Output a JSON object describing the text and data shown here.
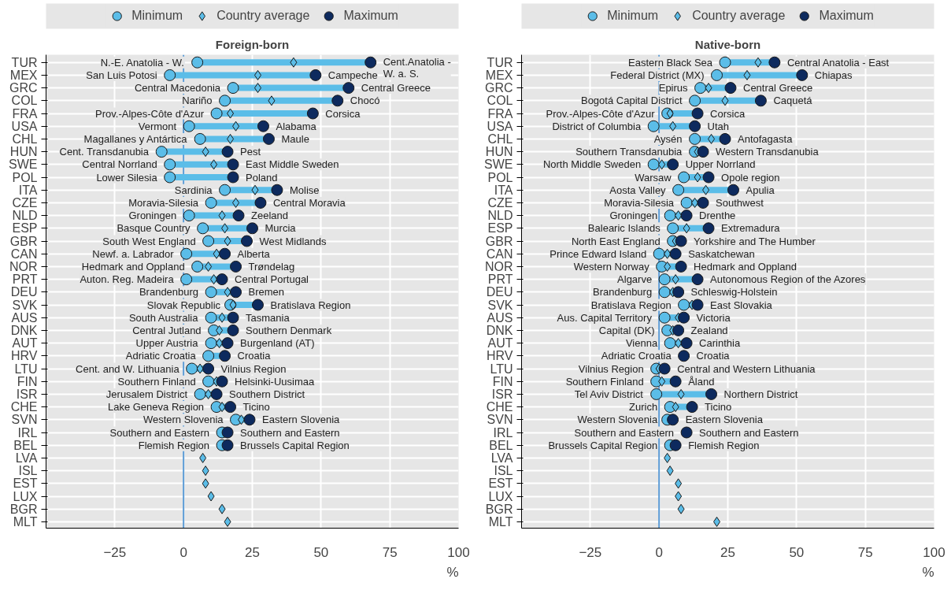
{
  "chart_data": [
    {
      "type": "scatter",
      "orientation": "horizontal",
      "title": "Foreign-born",
      "xlabel": "%",
      "legend": "top",
      "grid": true,
      "categories": [
        "TUR",
        "MEX",
        "GRC",
        "COL",
        "FRA",
        "USA",
        "CHL",
        "HUN",
        "SWE",
        "POL",
        "ITA",
        "CZE",
        "NLD",
        "ESP",
        "GBR",
        "CAN",
        "NOR",
        "PRT",
        "DEU",
        "SVK",
        "AUS",
        "DNK",
        "AUT",
        "HRV",
        "LTU",
        "FIN",
        "ISR",
        "CHE",
        "SVN",
        "IRL",
        "BEL",
        "LVA",
        "ISL",
        "EST",
        "LUX",
        "BGR",
        "MLT"
      ],
      "xlim": [
        -50,
        100
      ],
      "xticks": [
        -25,
        0,
        25,
        50,
        75,
        100
      ],
      "ref_lines": [
        {
          "axis": "x",
          "value": 0,
          "color": "#5b9bd5"
        }
      ],
      "series": [
        {
          "name": "Minimum",
          "color": "#5bbde8",
          "marker": "circle",
          "values": [
            5,
            -5,
            18,
            15,
            12,
            2,
            6,
            -8,
            -5,
            -5,
            15,
            10,
            2,
            7,
            9,
            1,
            5,
            1,
            10,
            17,
            10,
            11,
            10,
            9,
            3,
            9,
            6,
            12,
            19,
            14,
            14,
            null,
            null,
            null,
            null,
            null,
            null
          ]
        },
        {
          "name": "Country average",
          "color": "#5bbde8",
          "marker": "diamond",
          "values": [
            40,
            27,
            27,
            32,
            17,
            19,
            17,
            8,
            11,
            null,
            26,
            19,
            14,
            15,
            16,
            12,
            9,
            11,
            16,
            18,
            14,
            13,
            13,
            null,
            6,
            12,
            9,
            14,
            21,
            null,
            null,
            7,
            8,
            8,
            10,
            14,
            16
          ]
        },
        {
          "name": "Maximum",
          "color": "#0d2a5e",
          "marker": "circle",
          "values": [
            68,
            48,
            60,
            56,
            47,
            29,
            31,
            16,
            18,
            18,
            34,
            28,
            20,
            25,
            23,
            15,
            19,
            14,
            19,
            27,
            18,
            18,
            16,
            15,
            9,
            14,
            12,
            17,
            24,
            16,
            16,
            null,
            null,
            null,
            null,
            null,
            null
          ]
        }
      ],
      "annotations": [
        {
          "text": "N.-E. Anatolia - W.",
          "x": 5,
          "y": "TUR"
        },
        {
          "text": "Cent.Anatolia -\nW. a. S.",
          "x": 68,
          "y": "TUR"
        },
        {
          "text": "San Luis Potosi",
          "x": -5,
          "y": "MEX"
        },
        {
          "text": "Campeche",
          "x": 48,
          "y": "MEX"
        },
        {
          "text": "Central Macedonia",
          "x": 18,
          "y": "GRC"
        },
        {
          "text": "Central Greece",
          "x": 60,
          "y": "GRC"
        },
        {
          "text": "Nariño",
          "x": 15,
          "y": "COL"
        },
        {
          "text": "Chocó",
          "x": 56,
          "y": "COL"
        },
        {
          "text": "Prov.-Alpes-Côte d'Azur",
          "x": 12,
          "y": "FRA"
        },
        {
          "text": "Corsica",
          "x": 47,
          "y": "FRA"
        },
        {
          "text": "Vermont",
          "x": 2,
          "y": "USA"
        },
        {
          "text": "Alabama",
          "x": 29,
          "y": "USA"
        },
        {
          "text": "Magallanes y Antártica",
          "x": 6,
          "y": "CHL"
        },
        {
          "text": "Maule",
          "x": 31,
          "y": "CHL"
        },
        {
          "text": "Cent. Transdanubia",
          "x": -8,
          "y": "HUN"
        },
        {
          "text": "Pest",
          "x": 16,
          "y": "HUN"
        },
        {
          "text": "Central Norrland",
          "x": -5,
          "y": "SWE"
        },
        {
          "text": "East Middle Sweden",
          "x": 18,
          "y": "SWE"
        },
        {
          "text": "Lower Silesia",
          "x": -5,
          "y": "POL"
        },
        {
          "text": "Poland",
          "x": 18,
          "y": "POL"
        },
        {
          "text": "Sardinia",
          "x": 15,
          "y": "ITA"
        },
        {
          "text": "Molise",
          "x": 34,
          "y": "ITA"
        },
        {
          "text": "Moravia-Silesia",
          "x": 10,
          "y": "CZE"
        },
        {
          "text": "Central Moravia",
          "x": 28,
          "y": "CZE"
        },
        {
          "text": "Groningen",
          "x": 2,
          "y": "NLD"
        },
        {
          "text": "Zeeland",
          "x": 20,
          "y": "NLD"
        },
        {
          "text": "Basque Country",
          "x": 7,
          "y": "ESP"
        },
        {
          "text": "Murcia",
          "x": 25,
          "y": "ESP"
        },
        {
          "text": "South West England",
          "x": 9,
          "y": "GBR"
        },
        {
          "text": "West Midlands",
          "x": 23,
          "y": "GBR"
        },
        {
          "text": "Newf. a. Labrador",
          "x": 1,
          "y": "CAN"
        },
        {
          "text": "Alberta",
          "x": 15,
          "y": "CAN"
        },
        {
          "text": "Hedmark and Oppland",
          "x": 5,
          "y": "NOR"
        },
        {
          "text": "Trøndelag",
          "x": 19,
          "y": "NOR"
        },
        {
          "text": "Auton. Reg. Madeira",
          "x": 1,
          "y": "PRT"
        },
        {
          "text": "Central Portugal",
          "x": 14,
          "y": "PRT"
        },
        {
          "text": "Brandenburg",
          "x": 10,
          "y": "DEU"
        },
        {
          "text": "Bremen",
          "x": 19,
          "y": "DEU"
        },
        {
          "text": "Slovak Republic",
          "x": 18,
          "y": "SVK"
        },
        {
          "text": "Bratislava Region",
          "x": 27,
          "y": "SVK"
        },
        {
          "text": "South Australia",
          "x": 10,
          "y": "AUS"
        },
        {
          "text": "Tasmania",
          "x": 18,
          "y": "AUS"
        },
        {
          "text": "Central Jutland",
          "x": 11,
          "y": "DNK"
        },
        {
          "text": "Southern Denmark",
          "x": 18,
          "y": "DNK"
        },
        {
          "text": "Upper Austria",
          "x": 10,
          "y": "AUT"
        },
        {
          "text": "Burgenland (AT)",
          "x": 16,
          "y": "AUT"
        },
        {
          "text": "Adriatic Croatia",
          "x": 9,
          "y": "HRV"
        },
        {
          "text": "Croatia",
          "x": 15,
          "y": "HRV"
        },
        {
          "text": "Cent. and W. Lithuania",
          "x": 3,
          "y": "LTU"
        },
        {
          "text": "Vilnius Region",
          "x": 9,
          "y": "LTU"
        },
        {
          "text": "Southern Finland",
          "x": 9,
          "y": "FIN"
        },
        {
          "text": "Helsinki-Uusimaa",
          "x": 14,
          "y": "FIN"
        },
        {
          "text": "Jerusalem District",
          "x": 6,
          "y": "ISR"
        },
        {
          "text": "Southern District",
          "x": 12,
          "y": "ISR"
        },
        {
          "text": "Lake Geneva Region",
          "x": 12,
          "y": "CHE"
        },
        {
          "text": "Ticino",
          "x": 17,
          "y": "CHE"
        },
        {
          "text": "Western Slovenia",
          "x": 19,
          "y": "SVN"
        },
        {
          "text": "Eastern Slovenia",
          "x": 24,
          "y": "SVN"
        },
        {
          "text": "Southern and Eastern",
          "x": 14,
          "y": "IRL"
        },
        {
          "text": "Southern and Eastern",
          "x": 16,
          "y": "IRL"
        },
        {
          "text": "Flemish Region",
          "x": 14,
          "y": "BEL"
        },
        {
          "text": "Brussels Capital Region",
          "x": 16,
          "y": "BEL"
        }
      ]
    },
    {
      "type": "scatter",
      "orientation": "horizontal",
      "title": "Native-born",
      "xlabel": "%",
      "legend": "top",
      "grid": true,
      "categories": [
        "TUR",
        "MEX",
        "GRC",
        "COL",
        "FRA",
        "USA",
        "CHL",
        "HUN",
        "SWE",
        "POL",
        "ITA",
        "CZE",
        "NLD",
        "ESP",
        "GBR",
        "CAN",
        "NOR",
        "PRT",
        "DEU",
        "SVK",
        "AUS",
        "DNK",
        "AUT",
        "HRV",
        "LTU",
        "FIN",
        "ISR",
        "CHE",
        "SVN",
        "IRL",
        "BEL",
        "LVA",
        "ISL",
        "EST",
        "LUX",
        "BGR",
        "MLT"
      ],
      "xlim": [
        -50,
        100
      ],
      "xticks": [
        -25,
        0,
        25,
        50,
        75,
        100
      ],
      "ref_lines": [
        {
          "axis": "x",
          "value": 0,
          "color": "#5b9bd5"
        }
      ],
      "series": [
        {
          "name": "Minimum",
          "color": "#5bbde8",
          "marker": "circle",
          "values": [
            24,
            21,
            15,
            13,
            3,
            -2,
            13,
            13,
            -2,
            9,
            7,
            10,
            4,
            5,
            5,
            0,
            1,
            2,
            2,
            9,
            2,
            3,
            4,
            null,
            -1,
            -1,
            -1,
            4,
            3,
            null,
            4,
            null,
            null,
            null,
            null,
            null,
            null
          ]
        },
        {
          "name": "Country average",
          "color": "#5bbde8",
          "marker": "diamond",
          "values": [
            36,
            32,
            18,
            24,
            4,
            5,
            19,
            14,
            1,
            14,
            17,
            13,
            7,
            10,
            6,
            3,
            3,
            6,
            5,
            12,
            7,
            5,
            7,
            null,
            0,
            1,
            8,
            6,
            null,
            null,
            null,
            3,
            4,
            7,
            7,
            8,
            21
          ]
        },
        {
          "name": "Maximum",
          "color": "#0d2a5e",
          "marker": "circle",
          "values": [
            42,
            52,
            26,
            37,
            14,
            13,
            24,
            16,
            5,
            18,
            27,
            16,
            10,
            18,
            8,
            6,
            8,
            14,
            7,
            14,
            9,
            7,
            10,
            9,
            2,
            6,
            19,
            12,
            5,
            10,
            6,
            null,
            null,
            null,
            null,
            null,
            null
          ]
        }
      ],
      "annotations": [
        {
          "text": "Eastern Black Sea",
          "x": 24,
          "y": "TUR"
        },
        {
          "text": "Central Anatolia - East",
          "x": 42,
          "y": "TUR"
        },
        {
          "text": "Federal District (MX)",
          "x": 21,
          "y": "MEX"
        },
        {
          "text": "Chiapas",
          "x": 52,
          "y": "MEX"
        },
        {
          "text": "Epirus",
          "x": 15,
          "y": "GRC"
        },
        {
          "text": "Central Greece",
          "x": 26,
          "y": "GRC"
        },
        {
          "text": "Bogotá Capital District",
          "x": 13,
          "y": "COL"
        },
        {
          "text": "Caquetá",
          "x": 37,
          "y": "COL"
        },
        {
          "text": "Prov.-Alpes-Côte d'Azur",
          "x": 3,
          "y": "FRA"
        },
        {
          "text": "Corsica",
          "x": 14,
          "y": "FRA"
        },
        {
          "text": "District of Columbia",
          "x": -2,
          "y": "USA"
        },
        {
          "text": "Utah",
          "x": 13,
          "y": "USA"
        },
        {
          "text": "Aysén",
          "x": 13,
          "y": "CHL"
        },
        {
          "text": "Antofagasta",
          "x": 24,
          "y": "CHL"
        },
        {
          "text": "Southern Transdanubia",
          "x": 13,
          "y": "HUN"
        },
        {
          "text": "Western Transdanubia",
          "x": 16,
          "y": "HUN"
        },
        {
          "text": "North Middle Sweden",
          "x": -2,
          "y": "SWE"
        },
        {
          "text": "Upper Norrland",
          "x": 5,
          "y": "SWE"
        },
        {
          "text": "Warsaw",
          "x": 9,
          "y": "POL"
        },
        {
          "text": "Opole region",
          "x": 18,
          "y": "POL"
        },
        {
          "text": "Aosta Valley",
          "x": 7,
          "y": "ITA"
        },
        {
          "text": "Apulia",
          "x": 27,
          "y": "ITA"
        },
        {
          "text": "Moravia-Silesia",
          "x": 10,
          "y": "CZE"
        },
        {
          "text": "Southwest",
          "x": 16,
          "y": "CZE"
        },
        {
          "text": "Groningen",
          "x": 4,
          "y": "NLD"
        },
        {
          "text": "Drenthe",
          "x": 10,
          "y": "NLD"
        },
        {
          "text": "Balearic Islands",
          "x": 5,
          "y": "ESP"
        },
        {
          "text": "Extremadura",
          "x": 18,
          "y": "ESP"
        },
        {
          "text": "North East England",
          "x": 5,
          "y": "GBR"
        },
        {
          "text": "Yorkshire and The Humber",
          "x": 8,
          "y": "GBR"
        },
        {
          "text": "Prince Edward Island",
          "x": 0,
          "y": "CAN"
        },
        {
          "text": "Saskatchewan",
          "x": 6,
          "y": "CAN"
        },
        {
          "text": "Western Norway",
          "x": 1,
          "y": "NOR"
        },
        {
          "text": "Hedmark and Oppland",
          "x": 8,
          "y": "NOR"
        },
        {
          "text": "Algarve",
          "x": 2,
          "y": "PRT"
        },
        {
          "text": "Autonomous Region of the Azores",
          "x": 14,
          "y": "PRT"
        },
        {
          "text": "Brandenburg",
          "x": 2,
          "y": "DEU"
        },
        {
          "text": "Schleswig-Holstein",
          "x": 7,
          "y": "DEU"
        },
        {
          "text": "Bratislava Region",
          "x": 9,
          "y": "SVK"
        },
        {
          "text": "East Slovakia",
          "x": 14,
          "y": "SVK"
        },
        {
          "text": "Aus. Capital Territory",
          "x": 2,
          "y": "AUS"
        },
        {
          "text": "Victoria",
          "x": 9,
          "y": "AUS"
        },
        {
          "text": "Capital (DK)",
          "x": 3,
          "y": "DNK"
        },
        {
          "text": "Zealand",
          "x": 7,
          "y": "DNK"
        },
        {
          "text": "Vienna",
          "x": 4,
          "y": "AUT"
        },
        {
          "text": "Carinthia",
          "x": 10,
          "y": "AUT"
        },
        {
          "text": "Adriatic Croatia",
          "x": 9,
          "y": "HRV"
        },
        {
          "text": "Croatia",
          "x": 9,
          "y": "HRV"
        },
        {
          "text": "Vilnius Region",
          "x": -1,
          "y": "LTU"
        },
        {
          "text": "Central and Western Lithuania",
          "x": 2,
          "y": "LTU"
        },
        {
          "text": "Southern Finland",
          "x": -1,
          "y": "FIN"
        },
        {
          "text": "Åland",
          "x": 6,
          "y": "FIN"
        },
        {
          "text": "Tel Aviv District",
          "x": -1,
          "y": "ISR"
        },
        {
          "text": "Northern District",
          "x": 19,
          "y": "ISR"
        },
        {
          "text": "Zurich",
          "x": 4,
          "y": "CHE"
        },
        {
          "text": "Ticino",
          "x": 12,
          "y": "CHE"
        },
        {
          "text": "Western Slovenia",
          "x": 4,
          "y": "SVN"
        },
        {
          "text": "Eastern Slovenia",
          "x": 5,
          "y": "SVN"
        },
        {
          "text": "Southern and Eastern",
          "x": 10,
          "y": "IRL"
        },
        {
          "text": "Southern and Eastern",
          "x": 10,
          "y": "IRL"
        },
        {
          "text": "Brussels Capital Region",
          "x": 4,
          "y": "BEL"
        },
        {
          "text": "Flemish Region",
          "x": 6,
          "y": "BEL"
        }
      ]
    }
  ]
}
